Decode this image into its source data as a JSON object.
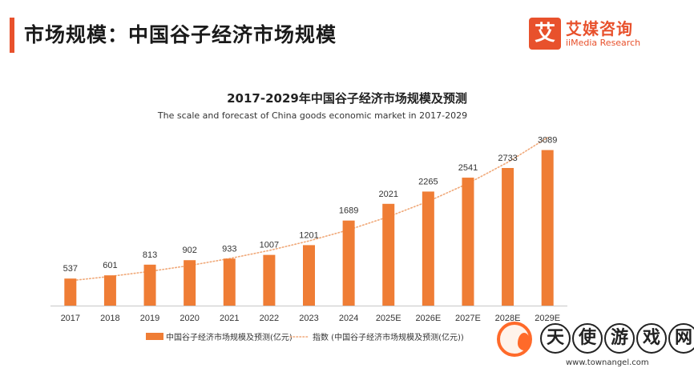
{
  "header": {
    "title": "市场规模：中国谷子经济市场规模",
    "accent_color": "#e8512c"
  },
  "logo": {
    "mark": "艾",
    "name_cn": "艾媒咨询",
    "name_en": "iiMedia Research",
    "color": "#e8512c"
  },
  "chart_data": {
    "type": "bar",
    "title": "2017-2029年中国谷子经济市场规模及预测",
    "subtitle": "The scale and forecast of China goods economic market in 2017-2029",
    "categories": [
      "2017",
      "2018",
      "2019",
      "2020",
      "2021",
      "2022",
      "2023",
      "2024",
      "2025E",
      "2026E",
      "2027E",
      "2028E",
      "2029E"
    ],
    "series": [
      {
        "name": "中国谷子经济市场规模及预测(亿元)",
        "values": [
          537,
          601,
          813,
          902,
          933,
          1007,
          1201,
          1689,
          2021,
          2265,
          2541,
          2733,
          3089
        ],
        "color": "#ef7d35"
      }
    ],
    "trendline": {
      "name": "指数 (中国谷子经济市场规模及预测(亿元))",
      "type": "exponential",
      "color": "#f0a878",
      "style": "dotted"
    },
    "ylim": [
      0,
      3400
    ],
    "grid": false,
    "legend_position": "bottom"
  },
  "watermark": {
    "chars": [
      "天",
      "使",
      "游",
      "戏",
      "网"
    ],
    "url": "www.townangel.com",
    "color": "#ff6a2a"
  }
}
